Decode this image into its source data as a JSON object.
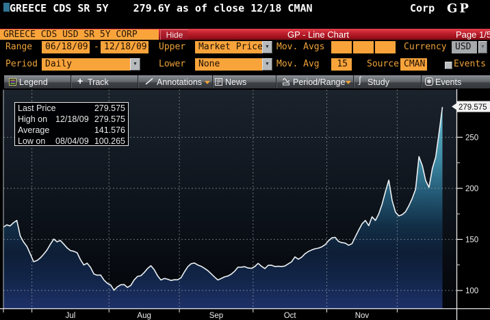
{
  "terminal": {
    "command_line": "GREECE CDS SR 5Y    279.6Y as of close 12/18 CMAN",
    "menu_key": "Corp",
    "function_code": "GP"
  },
  "title_bar": {
    "security": "GREECE CDS USD SR 5Y CORP",
    "hide_button": "Hide",
    "title": "GP - Line Chart",
    "page": "Page 1/5"
  },
  "form": {
    "range_label": "Range",
    "range_from": "06/18/09",
    "range_separator": "-",
    "range_to": "12/18/09",
    "upper_label": "Upper",
    "upper_value": "Market Price",
    "mov_avgs_label": "Mov. Avgs",
    "mov_avgs_values": [
      "",
      "",
      ""
    ],
    "currency_label": "Currency",
    "currency_value": "USD",
    "period_label": "Period",
    "period_value": "Daily",
    "lower_label": "Lower",
    "lower_value": "None",
    "mov_avg_label": "Mov. Avg",
    "mov_avg_value": "15",
    "source_label": "Source",
    "source_value": "CMAN",
    "events_label": "Events",
    "events_checked": false
  },
  "toolbar": {
    "buttons": [
      {
        "label": "Legend",
        "icon": "legend-icon",
        "dropdown": false
      },
      {
        "label": "Track",
        "icon": "plus-icon",
        "dropdown": false
      },
      {
        "label": "Annotations",
        "icon": "pencil-icon",
        "dropdown": true
      },
      {
        "label": "News",
        "icon": "news-icon",
        "dropdown": false
      },
      {
        "label": "Period/Range",
        "icon": "period-range-icon",
        "dropdown": true
      },
      {
        "label": "Study",
        "icon": "study-icon",
        "dropdown": false
      },
      {
        "label": "Events",
        "icon": "events-icon",
        "dropdown": false
      }
    ]
  },
  "legend_box": {
    "rows": [
      {
        "label": "Last Price",
        "date": "",
        "value": "279.575"
      },
      {
        "label": "High on",
        "date": "12/18/09",
        "value": "279.575"
      },
      {
        "label": "Average",
        "date": "",
        "value": "141.576"
      },
      {
        "label": "Low on",
        "date": "08/04/09",
        "value": "100.265"
      }
    ]
  },
  "chart_data": {
    "type": "line",
    "title": "GP - Line Chart",
    "series_name": "GREECE CDS USD SR 5Y CORP",
    "xlabel": "",
    "ylabel": "",
    "x_start": "06/18/09",
    "x_end": "12/18/09",
    "frequency": "daily (trading days)",
    "dates": [
      "06/18/09",
      "06/19/09",
      "06/22/09",
      "06/23/09",
      "06/24/09",
      "06/25/09",
      "06/26/09",
      "06/29/09",
      "06/30/09",
      "07/01/09",
      "07/02/09",
      "07/03/09",
      "07/06/09",
      "07/07/09",
      "07/08/09",
      "07/09/09",
      "07/10/09",
      "07/13/09",
      "07/14/09",
      "07/15/09",
      "07/16/09",
      "07/17/09",
      "07/20/09",
      "07/21/09",
      "07/22/09",
      "07/23/09",
      "07/24/09",
      "07/27/09",
      "07/28/09",
      "07/29/09",
      "07/30/09",
      "07/31/09",
      "08/03/09",
      "08/04/09",
      "08/05/09",
      "08/06/09",
      "08/07/09",
      "08/10/09",
      "08/11/09",
      "08/12/09",
      "08/13/09",
      "08/14/09",
      "08/17/09",
      "08/18/09",
      "08/19/09",
      "08/20/09",
      "08/21/09",
      "08/24/09",
      "08/25/09",
      "08/26/09",
      "08/27/09",
      "08/28/09",
      "08/31/09",
      "09/01/09",
      "09/02/09",
      "09/03/09",
      "09/04/09",
      "09/07/09",
      "09/08/09",
      "09/09/09",
      "09/10/09",
      "09/11/09",
      "09/14/09",
      "09/15/09",
      "09/16/09",
      "09/17/09",
      "09/18/09",
      "09/21/09",
      "09/22/09",
      "09/23/09",
      "09/24/09",
      "09/25/09",
      "09/28/09",
      "09/29/09",
      "09/30/09",
      "10/01/09",
      "10/02/09",
      "10/05/09",
      "10/06/09",
      "10/07/09",
      "10/08/09",
      "10/09/09",
      "10/12/09",
      "10/13/09",
      "10/14/09",
      "10/15/09",
      "10/16/09",
      "10/19/09",
      "10/20/09",
      "10/21/09",
      "10/22/09",
      "10/23/09",
      "10/26/09",
      "10/27/09",
      "10/28/09",
      "10/29/09",
      "10/30/09",
      "11/02/09",
      "11/03/09",
      "11/04/09",
      "11/05/09",
      "11/06/09",
      "11/09/09",
      "11/10/09",
      "11/11/09",
      "11/12/09",
      "11/13/09",
      "11/16/09",
      "11/17/09",
      "11/18/09",
      "11/19/09",
      "11/20/09",
      "11/23/09",
      "11/24/09",
      "11/25/09",
      "11/26/09",
      "11/27/09",
      "11/30/09",
      "12/01/09",
      "12/02/09",
      "12/03/09",
      "12/04/09",
      "12/07/09",
      "12/08/09",
      "12/09/09",
      "12/10/09",
      "12/11/09",
      "12/14/09",
      "12/15/09",
      "12/16/09",
      "12/17/09",
      "12/18/09"
    ],
    "values": [
      162,
      164.202,
      163.207,
      166.372,
      168.6,
      153.545,
      147.535,
      143.165,
      135.816,
      128.2,
      129.275,
      131.85,
      135.472,
      139.583,
      145.272,
      150.3,
      147.642,
      149,
      145.4,
      141.731,
      139.14,
      138.349,
      136.936,
      130.159,
      124.941,
      126.7,
      122.627,
      116.087,
      114.991,
      115.2,
      110.198,
      107.044,
      105.405,
      100.265,
      103.58,
      105.578,
      105.8,
      103,
      104.927,
      110.295,
      113.757,
      114.462,
      117.592,
      121.443,
      124.2,
      120.367,
      114.337,
      110.3,
      111.829,
      111.003,
      109.8,
      110.566,
      110.456,
      112.465,
      118.098,
      123.202,
      126.145,
      126.9,
      124.937,
      123.718,
      121.68,
      119.447,
      116.299,
      113.141,
      110.3,
      111.774,
      113.346,
      114.14,
      116.02,
      118.835,
      122.8,
      122.892,
      123.266,
      122,
      121.691,
      123.417,
      126.6,
      123.658,
      121.5,
      124.6,
      124.7,
      123.481,
      123.686,
      123.52,
      123.936,
      126.013,
      128.132,
      132.9,
      130.6,
      132.627,
      135.963,
      138.149,
      139.669,
      140.889,
      141.457,
      142.755,
      144.852,
      148.571,
      151.532,
      152,
      148.0,
      146.816,
      146.34,
      144.3,
      145.785,
      152.542,
      159.073,
      165.224,
      168.6,
      163.5,
      172.1,
      168.6,
      175.1,
      184.657,
      197.065,
      208,
      188.067,
      176.615,
      173,
      174.232,
      177.1,
      183.007,
      190.183,
      199.173,
      231,
      222.333,
      207.587,
      201,
      219.595,
      230.735,
      254.675,
      279.575
    ],
    "stats": {
      "last_price": 279.575,
      "high": 279.575,
      "high_date": "12/18/09",
      "average": 141.576,
      "low": 100.265,
      "low_date": "08/04/09"
    },
    "y_range": [
      82.5,
      296.5
    ],
    "y_major_ticks": [
      250,
      200,
      150,
      100
    ],
    "y_minor_ticks": [
      275,
      225,
      175,
      125
    ],
    "x_month_boundaries": [
      8.5,
      31.5,
      52.5,
      74.5,
      96.5,
      117.5
    ],
    "x_month_labels": [
      "Jul",
      "Aug",
      "Sep",
      "Oct",
      "Nov"
    ],
    "last_price_tag": "279.575",
    "grid": "dotted",
    "legend_position": "top-left",
    "colors": {
      "line": "#edf2f4",
      "fill_top": "#61b5ca",
      "fill_mid": "#10293f",
      "fill_bottom": "#1c3067",
      "grid": "#aab2b8",
      "plot_bg_top": "#1a222c",
      "plot_bg_bottom": "#030509",
      "accent_orange": "#f5a43b",
      "title_bar_red": "#c32530",
      "cursor_teal": "#2f7493"
    }
  }
}
